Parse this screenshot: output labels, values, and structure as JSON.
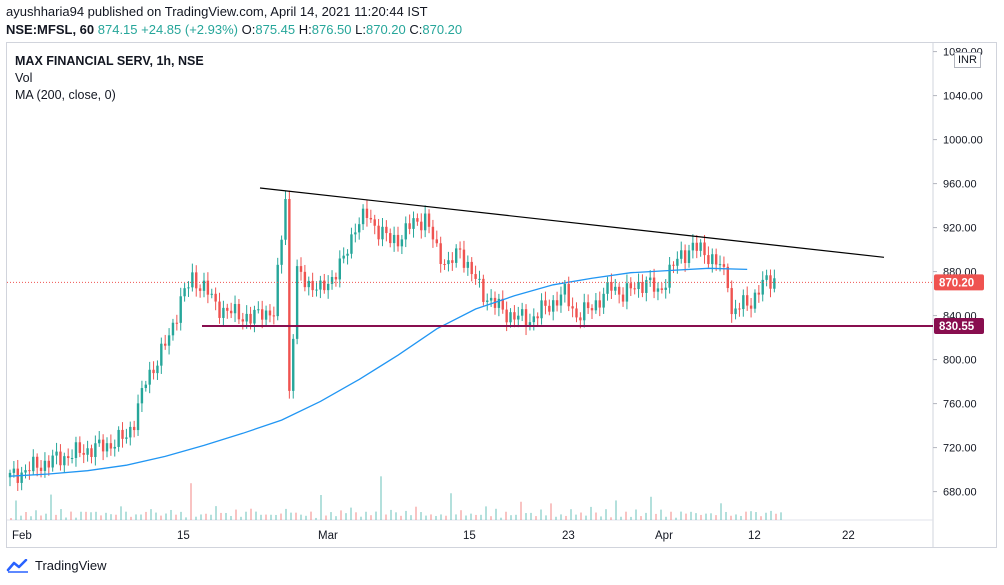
{
  "header": {
    "published": "ayushharia94 published on TradingView.com, April 14, 2021 11:20:44 IST",
    "symbol": "NSE:MFSL, 60",
    "last": "874.15",
    "change": "+24.85 (+2.93%)",
    "o_label": "O:",
    "o_value": "875.45",
    "h_label": "H:",
    "h_value": "876.50",
    "l_label": "L:",
    "l_value": "870.20",
    "c_label": "C:",
    "c_value": "870.20"
  },
  "legend": {
    "title": "MAX FINANCIAL SERV, 1h, NSE",
    "vol": "Vol",
    "ma": "MA (200, close, 0)"
  },
  "currency": "INR",
  "footer": {
    "brand": "TradingView"
  },
  "colors": {
    "up": "#26a69a",
    "down": "#ef5350",
    "ma": "#2196f3",
    "support": "#880e4f",
    "trend": "#000000",
    "price_line": "#ef5350"
  },
  "chart_data": {
    "type": "candlestick",
    "y_axis": {
      "range": [
        650,
        1085
      ],
      "ticks": [
        680,
        720,
        760,
        800,
        840,
        880,
        920,
        960,
        1000,
        1040,
        1080
      ]
    },
    "x_axis": {
      "tick_labels": [
        "Feb",
        "15",
        "Mar",
        "15",
        "23",
        "Apr",
        "12",
        "22"
      ]
    },
    "current_price": {
      "value": 870.2,
      "label": "870.20"
    },
    "support_line": {
      "value": 830.55,
      "label": "830.55"
    },
    "trendline": {
      "from": {
        "x": "Feb 22",
        "y": 956
      },
      "to": {
        "x": "Apr 28",
        "y": 893
      }
    },
    "ma200": [
      [
        0,
        694
      ],
      [
        10,
        696
      ],
      [
        20,
        699
      ],
      [
        30,
        704
      ],
      [
        40,
        712
      ],
      [
        50,
        722
      ],
      [
        60,
        733
      ],
      [
        70,
        745
      ],
      [
        80,
        762
      ],
      [
        90,
        782
      ],
      [
        100,
        804
      ],
      [
        110,
        828
      ],
      [
        120,
        846
      ],
      [
        130,
        858
      ],
      [
        140,
        868
      ],
      [
        150,
        874
      ],
      [
        160,
        879
      ],
      [
        170,
        881
      ],
      [
        180,
        883
      ],
      [
        190,
        882
      ]
    ],
    "price_path": [
      [
        0,
        693
      ],
      [
        5,
        701
      ],
      [
        10,
        707
      ],
      [
        15,
        713
      ],
      [
        20,
        718
      ],
      [
        25,
        722
      ],
      [
        30,
        730
      ],
      [
        32,
        745
      ],
      [
        35,
        780
      ],
      [
        38,
        800
      ],
      [
        41,
        820
      ],
      [
        44,
        855
      ],
      [
        47,
        873
      ],
      [
        50,
        866
      ],
      [
        53,
        850
      ],
      [
        56,
        843
      ],
      [
        59,
        842
      ],
      [
        62,
        836
      ],
      [
        65,
        845
      ],
      [
        68,
        840
      ],
      [
        71,
        950
      ],
      [
        72,
        770
      ],
      [
        74,
        878
      ],
      [
        77,
        870
      ],
      [
        80,
        862
      ],
      [
        83,
        875
      ],
      [
        86,
        890
      ],
      [
        89,
        922
      ],
      [
        92,
        931
      ],
      [
        95,
        918
      ],
      [
        98,
        908
      ],
      [
        101,
        912
      ],
      [
        104,
        925
      ],
      [
        107,
        928
      ],
      [
        110,
        900
      ],
      [
        113,
        885
      ],
      [
        116,
        900
      ],
      [
        119,
        878
      ],
      [
        122,
        860
      ],
      [
        125,
        850
      ],
      [
        128,
        842
      ],
      [
        131,
        838
      ],
      [
        134,
        836
      ],
      [
        137,
        845
      ],
      [
        140,
        852
      ],
      [
        143,
        860
      ],
      [
        146,
        840
      ],
      [
        149,
        845
      ],
      [
        152,
        855
      ],
      [
        155,
        866
      ],
      [
        158,
        860
      ],
      [
        161,
        865
      ],
      [
        164,
        872
      ],
      [
        167,
        860
      ],
      [
        170,
        880
      ],
      [
        173,
        895
      ],
      [
        176,
        902
      ],
      [
        179,
        898
      ],
      [
        182,
        888
      ],
      [
        185,
        874
      ],
      [
        186,
        842
      ],
      [
        188,
        848
      ],
      [
        191,
        853
      ],
      [
        194,
        868
      ],
      [
        197,
        874
      ]
    ],
    "volume_relative": [
      0.2,
      0.7,
      0.3,
      0.3,
      0.2,
      0.4,
      0.2,
      0.3,
      1.0,
      0.3,
      0.4,
      0.2,
      0.3,
      0.2,
      0.3,
      0.5,
      0.3,
      0.4,
      0.2,
      0.3,
      0.3,
      0.2,
      0.9,
      0.3,
      0.3,
      0.2,
      0.4,
      0.3,
      0.6,
      0.3,
      0.2,
      0.3,
      0.4,
      0.3,
      0.3,
      0.2,
      0.6,
      0.3,
      0.2,
      0.4
    ]
  }
}
